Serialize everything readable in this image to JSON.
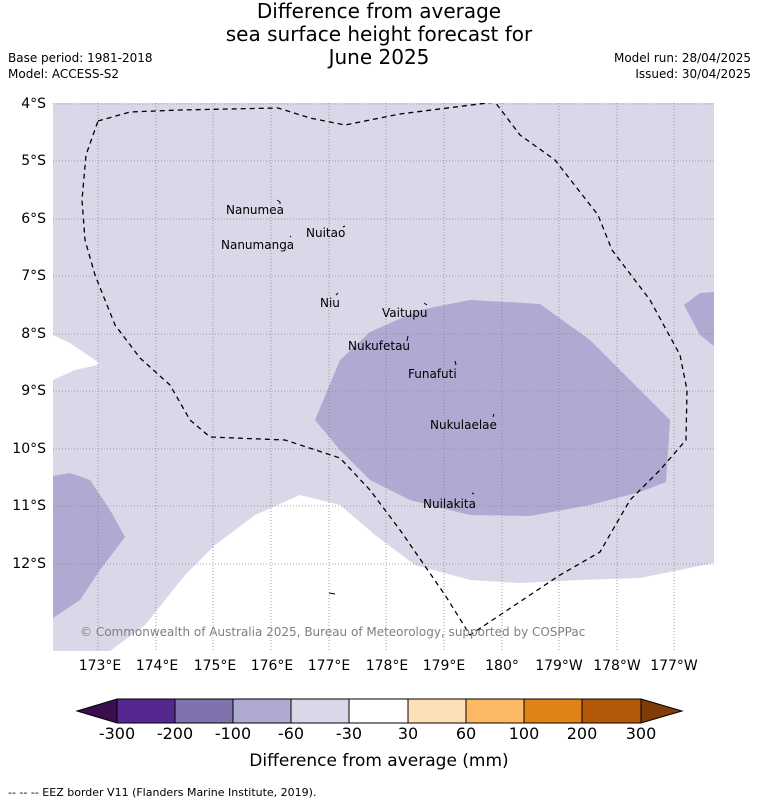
{
  "title": {
    "line1": "Difference from average",
    "line2": "sea surface height forecast for",
    "line3": "June 2025"
  },
  "meta": {
    "base_period": "Base period: 1981-2018",
    "model": "Model: ACCESS-S2",
    "model_run": "Model run: 28/04/2025",
    "issued": "Issued: 30/04/2025"
  },
  "axes": {
    "lat_labels": [
      "4°S",
      "5°S",
      "6°S",
      "7°S",
      "8°S",
      "9°S",
      "10°S",
      "11°S",
      "12°S"
    ],
    "lon_labels": [
      "173°E",
      "174°E",
      "175°E",
      "176°E",
      "177°E",
      "178°E",
      "179°E",
      "180°",
      "179°W",
      "178°W",
      "177°W"
    ]
  },
  "places": [
    {
      "name": "Nanumea"
    },
    {
      "name": "Nuitao"
    },
    {
      "name": "Nanumanga"
    },
    {
      "name": "Niu"
    },
    {
      "name": "Vaitupu"
    },
    {
      "name": "Nukufetau"
    },
    {
      "name": "Funafuti"
    },
    {
      "name": "Nukulaelae"
    },
    {
      "name": "Nuilakita"
    }
  ],
  "copyright": "© Commonwealth of Australia 2025, Bureau of Meteorology, supported by COSPPac",
  "colorbar": {
    "ticks": [
      "-300",
      "-200",
      "-100",
      "-60",
      "-30",
      "30",
      "60",
      "100",
      "200",
      "300"
    ],
    "colors": [
      "#3b0f4f",
      "#54278f",
      "#7f72ad",
      "#aeaad1",
      "#d8d8e8",
      "#ffffff",
      "#fee0b6",
      "#fdb863",
      "#e08214",
      "#b35806",
      "#7f3b08"
    ],
    "label": "Difference from average (mm)"
  },
  "eez_legend": "-- -- -- EEZ border V11 (Flanders Marine Institute, 2019)."
}
